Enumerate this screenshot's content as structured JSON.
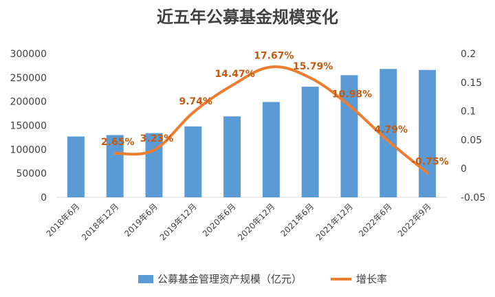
{
  "chart_data": {
    "type": "bar",
    "title": "近五年公募基金规模变化",
    "categories": [
      "2018年6月",
      "2018年12月",
      "2019年6月",
      "2019年12月",
      "2020年6月",
      "2020年12月",
      "2021年6月",
      "2021年12月",
      "2022年6月",
      "2022年9月"
    ],
    "series": [
      {
        "name": "公募基金管理资产规模（亿元）",
        "type": "bar",
        "axis": "left",
        "color": "#5B9BD5",
        "values": [
          127000,
          130000,
          134000,
          148000,
          169000,
          199000,
          231000,
          255000,
          268000,
          266000
        ]
      },
      {
        "name": "增长率",
        "type": "line",
        "axis": "right",
        "color": "#ED7D31",
        "values": [
          null,
          0.0265,
          0.0323,
          0.0974,
          0.1447,
          0.1767,
          0.1579,
          0.1098,
          0.0479,
          -0.0075
        ],
        "labels": [
          "",
          "2.65%",
          "3.23%",
          "9.74%",
          "14.47%",
          "17.67%",
          "15.79%",
          "10.98%",
          "4.79%",
          "-0.75%"
        ]
      }
    ],
    "y_left": {
      "min": 0,
      "max": 300000,
      "ticks": [
        "0",
        "50000",
        "100000",
        "150000",
        "200000",
        "250000",
        "300000"
      ]
    },
    "y_right": {
      "min": -0.05,
      "max": 0.2,
      "ticks": [
        "-0.05",
        "0",
        "0.05",
        "0.1",
        "0.15",
        "0.2"
      ]
    },
    "grid": false,
    "legend": "bottom"
  }
}
